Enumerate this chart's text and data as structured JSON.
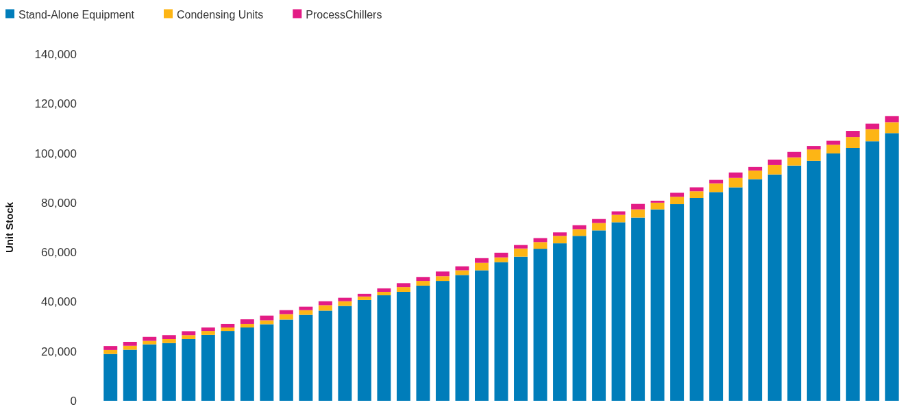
{
  "chart_data": {
    "type": "bar",
    "stacked": true,
    "ylabel": "Unit Stock",
    "legend": "top left",
    "categories": [
      null,
      null,
      null,
      null,
      null,
      null,
      null,
      null,
      null,
      null,
      null,
      null,
      null,
      null,
      null,
      null,
      null,
      null,
      null,
      null,
      null,
      null,
      null,
      null,
      null,
      null,
      null,
      null,
      null,
      null,
      null,
      null,
      null,
      null,
      null,
      null,
      null,
      null,
      null,
      null,
      null
    ],
    "series": [
      {
        "name": "Stand-Alone Equipment",
        "color": "#007dba",
        "values": [
          18900,
          20600,
          22800,
          23300,
          24900,
          26600,
          28200,
          29600,
          30900,
          32800,
          34700,
          36400,
          38300,
          40700,
          42600,
          44000,
          46500,
          48400,
          50800,
          52700,
          56000,
          58200,
          61400,
          63600,
          66600,
          68800,
          72100,
          74000,
          77300,
          79400,
          81900,
          84300,
          86200,
          89500,
          91400,
          95000,
          96900,
          99900,
          102100,
          104800,
          108100
        ]
      },
      {
        "name": "Condensing Units",
        "color": "#fdb515",
        "values": [
          1600,
          1600,
          1400,
          1600,
          1600,
          1600,
          1400,
          1400,
          1600,
          2200,
          1900,
          2200,
          1900,
          1400,
          1400,
          1900,
          1900,
          1900,
          1900,
          3000,
          1900,
          3300,
          2700,
          3000,
          2700,
          3000,
          3000,
          3300,
          2700,
          3000,
          2700,
          3500,
          3800,
          3500,
          3800,
          3300,
          4600,
          3500,
          4400,
          4900,
          4400
        ]
      },
      {
        "name": "ProcessChillers",
        "color": "#e31c85",
        "values": [
          1600,
          1600,
          1600,
          1600,
          1600,
          1400,
          1400,
          1900,
          1900,
          1600,
          1400,
          1600,
          1400,
          1100,
          1400,
          1600,
          1600,
          1900,
          1600,
          1900,
          1900,
          1400,
          1600,
          1400,
          1600,
          1600,
          1400,
          2200,
          800,
          1600,
          1600,
          1400,
          2200,
          1400,
          2200,
          2200,
          1400,
          1600,
          2500,
          2200,
          2500
        ]
      }
    ],
    "ylim": [
      0,
      140000
    ],
    "yticks": [
      {
        "value": 0,
        "label": "0"
      },
      {
        "value": 20000,
        "label": "20,000"
      },
      {
        "value": 40000,
        "label": "40,000"
      },
      {
        "value": 60000,
        "label": "60,000"
      },
      {
        "value": 80000,
        "label": "80,000"
      },
      {
        "value": 100000,
        "label": "100,000"
      },
      {
        "value": 120000,
        "label": "120,000"
      },
      {
        "value": 140000,
        "label": "140,000"
      }
    ]
  }
}
